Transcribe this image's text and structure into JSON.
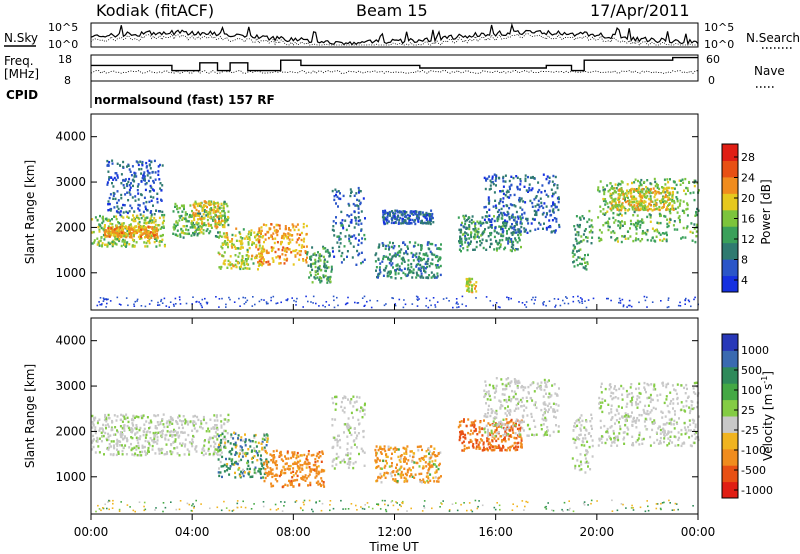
{
  "header": {
    "station": "Kodiak (fitACF)",
    "beam": "Beam 15",
    "date": "17/Apr/2011"
  },
  "side_labels": {
    "nsky": "N.Sky",
    "freq": "Freq.",
    "mhz": "[MHz]",
    "cpid": "CPID",
    "nsearch": "N.Search",
    "nave": "Nave"
  },
  "cpid_text": "normalsound (fast) 157 RF",
  "noise_panel": {
    "left_ticks": [
      "10^5",
      "10^0"
    ],
    "right_ticks": [
      "10^5",
      "10^0"
    ]
  },
  "freq_panel": {
    "left_ticks": [
      "18",
      "8"
    ],
    "right_ticks": [
      "60",
      "0"
    ],
    "freq_steps": [
      [
        0.0,
        14
      ],
      [
        3.2,
        14
      ],
      [
        3.2,
        12
      ],
      [
        4.3,
        12
      ],
      [
        4.3,
        15
      ],
      [
        5.0,
        15
      ],
      [
        5.0,
        12
      ],
      [
        5.5,
        12
      ],
      [
        5.5,
        15
      ],
      [
        6.2,
        15
      ],
      [
        6.2,
        12
      ],
      [
        7.5,
        12
      ],
      [
        7.5,
        16
      ],
      [
        8.3,
        16
      ],
      [
        8.3,
        14
      ],
      [
        13.0,
        14
      ],
      [
        13.0,
        13
      ],
      [
        18.0,
        13
      ],
      [
        18.0,
        14
      ],
      [
        19.0,
        14
      ],
      [
        19.0,
        12
      ],
      [
        19.5,
        12
      ],
      [
        19.5,
        16
      ],
      [
        23.0,
        16
      ],
      [
        23.0,
        17
      ],
      [
        24.0,
        17
      ]
    ],
    "nave_base": 14
  },
  "time_axis": {
    "label": "Time UT",
    "ticks": [
      "00:00",
      "04:00",
      "08:00",
      "12:00",
      "16:00",
      "20:00",
      "00:00"
    ],
    "range_hours": [
      0,
      24
    ]
  },
  "power_colorbar": {
    "title": "Power [dB]",
    "ticks": [
      "4",
      "8",
      "12",
      "16",
      "20",
      "24",
      "28"
    ],
    "colors": [
      "#1530e0",
      "#2a55c8",
      "#2f7a70",
      "#3aa05a",
      "#7cc43c",
      "#e6c81e",
      "#f08c1e",
      "#e85014",
      "#e01e14"
    ]
  },
  "velocity_colorbar": {
    "title": "Velocity [m s",
    "title_exp": "-1",
    "title_end": "]",
    "ticks": [
      "1000",
      "500",
      "100",
      "25",
      "-25",
      "-100",
      "-500",
      "-1000"
    ],
    "colors": [
      "#2838b8",
      "#3a6ab0",
      "#2f8a5a",
      "#44a844",
      "#84cc44",
      "#c8c8c8",
      "#f0b420",
      "#f08c1e",
      "#e85014",
      "#e01e14"
    ]
  },
  "chart_data": {
    "type": "heatmap",
    "title": "Kodiak (fitACF) Beam 15 17/Apr/2011",
    "xlabel": "Time UT",
    "ylabel": "Slant Range [km]",
    "xlim_hours": [
      0,
      24
    ],
    "ylim_km": [
      180,
      4500
    ],
    "yticks": [
      "1000",
      "2000",
      "3000",
      "4000"
    ],
    "panels": [
      "Power [dB]",
      "Velocity [m s-1]"
    ],
    "power_ticks": [
      4,
      8,
      12,
      16,
      20,
      24,
      28
    ],
    "velocity_ticks": [
      1000,
      500,
      100,
      25,
      -25,
      -100,
      -500,
      -1000
    ],
    "power_scatter": [
      {
        "t0": 0.0,
        "t1": 2.9,
        "r0": 1600,
        "r1": 2300,
        "power": 16
      },
      {
        "t0": 0.5,
        "t1": 2.6,
        "r0": 1800,
        "r1": 2050,
        "power": 22
      },
      {
        "t0": 0.6,
        "t1": 2.8,
        "r0": 2300,
        "r1": 3500,
        "power": 5
      },
      {
        "t0": 3.2,
        "t1": 5.4,
        "r0": 1800,
        "r1": 2600,
        "power": 14
      },
      {
        "t0": 4.0,
        "t1": 5.2,
        "r0": 2000,
        "r1": 2600,
        "power": 21
      },
      {
        "t0": 5.0,
        "t1": 6.8,
        "r0": 1100,
        "r1": 2000,
        "power": 18
      },
      {
        "t0": 6.5,
        "t1": 8.5,
        "r0": 1200,
        "r1": 2100,
        "power": 23
      },
      {
        "t0": 8.5,
        "t1": 9.5,
        "r0": 800,
        "r1": 1600,
        "power": 12
      },
      {
        "t0": 9.5,
        "t1": 10.8,
        "r0": 1200,
        "r1": 2900,
        "power": 6
      },
      {
        "t0": 11.2,
        "t1": 13.8,
        "r0": 900,
        "r1": 1700,
        "power": 9
      },
      {
        "t0": 11.5,
        "t1": 13.5,
        "r0": 2100,
        "r1": 2400,
        "power": 5
      },
      {
        "t0": 14.5,
        "t1": 17.0,
        "r0": 1500,
        "r1": 2300,
        "power": 10
      },
      {
        "t0": 14.8,
        "t1": 15.2,
        "r0": 600,
        "r1": 900,
        "power": 20
      },
      {
        "t0": 15.5,
        "t1": 18.5,
        "r0": 1900,
        "r1": 3200,
        "power": 5
      },
      {
        "t0": 19.0,
        "t1": 19.8,
        "r0": 1100,
        "r1": 2400,
        "power": 12
      },
      {
        "t0": 20.0,
        "t1": 24.0,
        "r0": 1700,
        "r1": 3100,
        "power": 14
      },
      {
        "t0": 20.5,
        "t1": 23.0,
        "r0": 2400,
        "r1": 2900,
        "power": 20
      }
    ],
    "velocity_scatter": [
      {
        "t0": 0.0,
        "t1": 5.4,
        "r0": 1500,
        "r1": 2400,
        "velocity": 0
      },
      {
        "t0": 5.0,
        "t1": 7.0,
        "r0": 1000,
        "r1": 2000,
        "velocity": 150
      },
      {
        "t0": 6.8,
        "t1": 9.2,
        "r0": 800,
        "r1": 1600,
        "velocity": -300
      },
      {
        "t0": 9.5,
        "t1": 10.8,
        "r0": 1200,
        "r1": 2800,
        "velocity": 0
      },
      {
        "t0": 11.2,
        "t1": 13.8,
        "r0": 900,
        "r1": 1700,
        "velocity": -200
      },
      {
        "t0": 14.5,
        "t1": 17.0,
        "r0": 1600,
        "r1": 2300,
        "velocity": -500
      },
      {
        "t0": 15.5,
        "t1": 18.5,
        "r0": 1900,
        "r1": 3200,
        "velocity": 0
      },
      {
        "t0": 19.0,
        "t1": 19.8,
        "r0": 1100,
        "r1": 2400,
        "velocity": 0
      },
      {
        "t0": 20.0,
        "t1": 24.0,
        "r0": 1700,
        "r1": 3100,
        "velocity": 0
      }
    ]
  }
}
